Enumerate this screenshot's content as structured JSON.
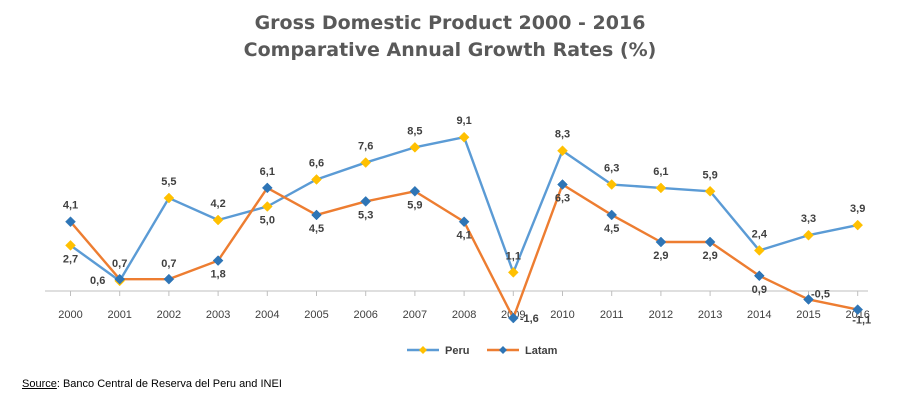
{
  "chart_data": {
    "type": "line",
    "title": "Gross Domestic Product 2000 - 2016",
    "subtitle": "Comparative Annual Growth Rates (%)",
    "categories": [
      "2000",
      "2001",
      "2002",
      "2003",
      "2004",
      "2005",
      "2006",
      "2007",
      "2008",
      "2009",
      "2010",
      "2011",
      "2012",
      "2013",
      "2014",
      "2015",
      "2016"
    ],
    "series": [
      {
        "name": "Peru",
        "color": "#5B9BD5",
        "marker_color": "#FFC000",
        "values": [
          2.7,
          0.6,
          5.5,
          4.2,
          5.0,
          6.6,
          7.6,
          8.5,
          9.1,
          1.1,
          8.3,
          6.3,
          6.1,
          5.9,
          2.4,
          3.3,
          3.9
        ],
        "labels": [
          "2,7",
          "0,6",
          "5,5",
          "4,2",
          "5,0",
          "6,6",
          "7,6",
          "8,5",
          "9,1",
          "1,1",
          "8,3",
          "6,3",
          "6,1",
          "5,9",
          "2,4",
          "3,3",
          "3,9"
        ]
      },
      {
        "name": "Latam",
        "color": "#ED7D31",
        "marker_color": "#2E75B6",
        "values": [
          4.1,
          0.7,
          0.7,
          1.8,
          6.1,
          4.5,
          5.3,
          5.9,
          4.1,
          -1.6,
          6.3,
          4.5,
          2.9,
          2.9,
          0.9,
          -0.5,
          -1.1
        ],
        "labels": [
          "4,1",
          "0,7",
          "0,7",
          "1,8",
          "6,1",
          "4,5",
          "5,3",
          "5,9",
          "4,1",
          "-1,6",
          "6,3",
          "4,5",
          "2,9",
          "2,9",
          "0,9",
          "-0,5",
          "-1,1"
        ]
      }
    ],
    "ylim": [
      -1.6,
      9.1
    ],
    "grid": false,
    "legend": "bottom-center"
  },
  "source": {
    "label": "Source",
    "text": ": Banco Central de Reserva del Peru and INEI"
  }
}
